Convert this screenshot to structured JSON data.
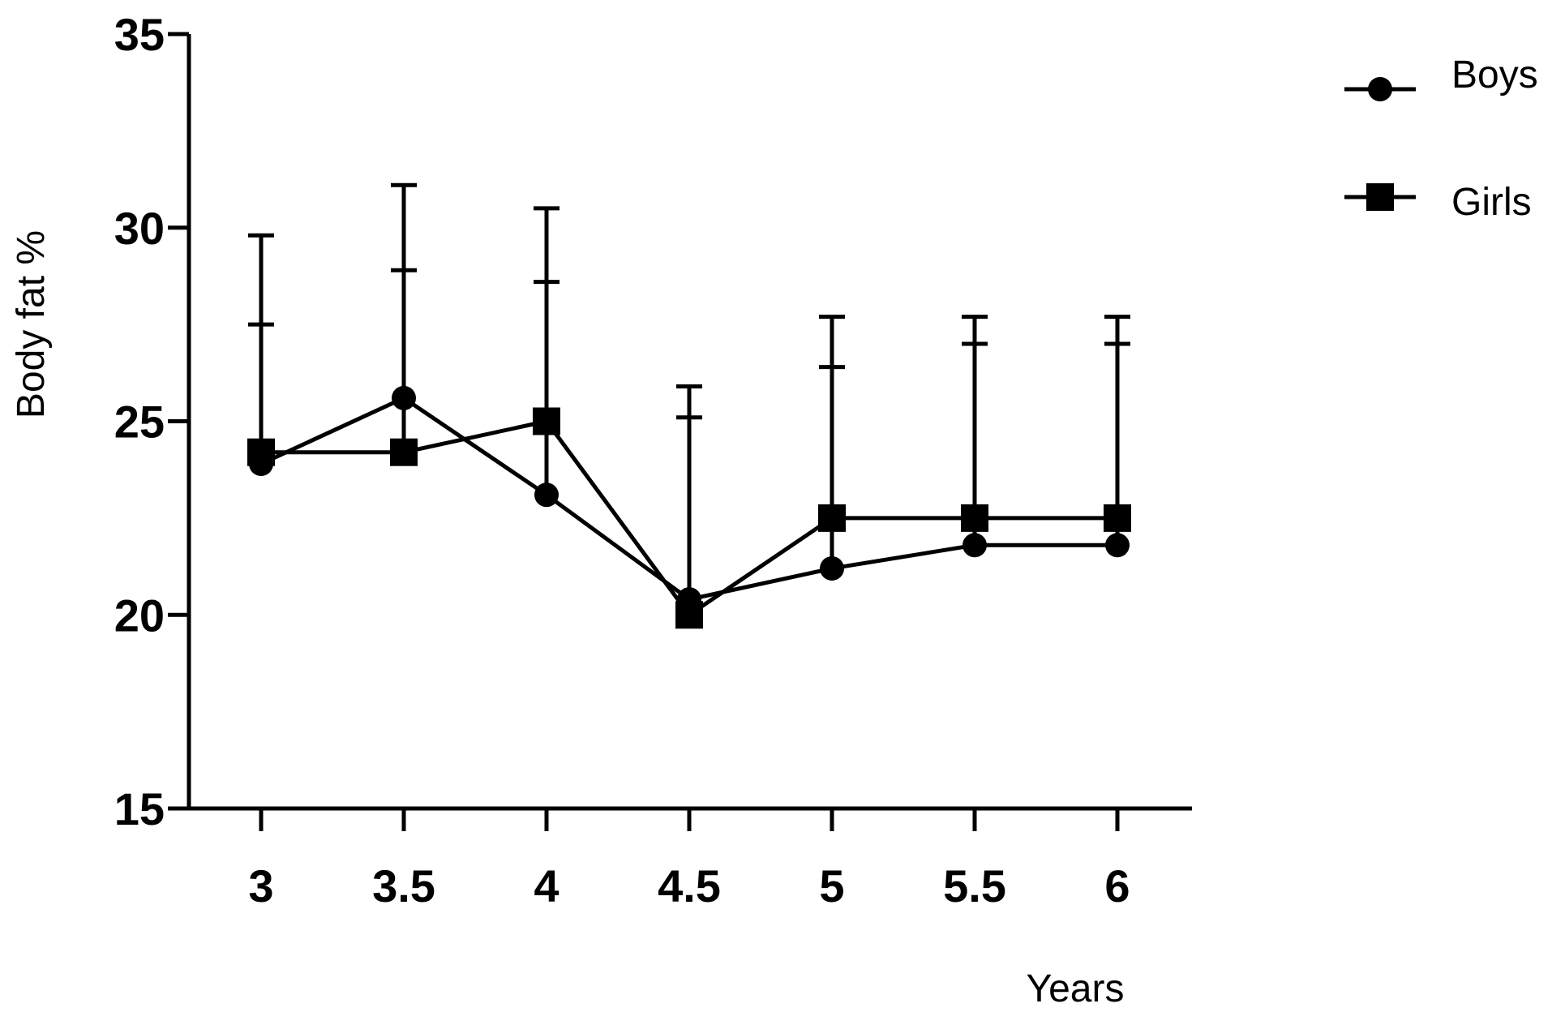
{
  "chart_data": {
    "type": "line",
    "title": "",
    "xlabel": "Years",
    "ylabel": "Body fat %",
    "x": [
      3,
      3.5,
      4,
      4.5,
      5,
      5.5,
      6
    ],
    "x_tick_labels": [
      "3",
      "3.5",
      "4",
      "4.5",
      "5",
      "5.5",
      "6"
    ],
    "ylim": [
      15,
      35
    ],
    "y_ticks": [
      15,
      20,
      25,
      30,
      35
    ],
    "y_tick_labels": [
      "15",
      "20",
      "25",
      "30",
      "35"
    ],
    "grid": false,
    "legend_position": "top-right",
    "error_bars": "upper",
    "series": [
      {
        "name": "Boys",
        "marker": "circle",
        "color": "#000000",
        "values": [
          23.9,
          25.6,
          23.1,
          20.4,
          21.2,
          21.8,
          21.8
        ],
        "upper_error": [
          27.5,
          28.9,
          28.6,
          25.1,
          26.4,
          27.0,
          27.0
        ]
      },
      {
        "name": "Girls",
        "marker": "square",
        "color": "#000000",
        "values": [
          24.2,
          24.2,
          25.0,
          20.0,
          22.5,
          22.5,
          22.5
        ],
        "upper_error": [
          29.8,
          31.1,
          30.5,
          25.9,
          27.7,
          27.7,
          27.7
        ]
      }
    ]
  }
}
